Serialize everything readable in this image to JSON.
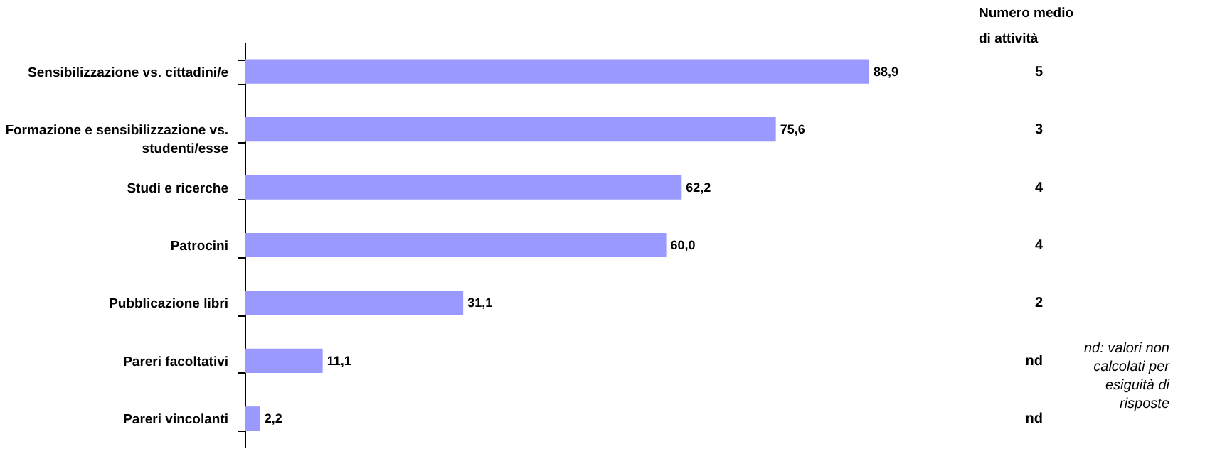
{
  "chart_data": {
    "type": "bar",
    "orientation": "horizontal",
    "categories": [
      "Sensibilizzazione vs. cittadini/e",
      "Formazione e sensibilizzazione vs. studenti/esse",
      "Studi e ricerche",
      "Patrocini",
      "Pubblicazione libri",
      "Pareri facoltativi",
      "Pareri vincolanti"
    ],
    "values": [
      88.9,
      75.6,
      62.2,
      60.0,
      31.1,
      11.1,
      2.2
    ],
    "value_labels": [
      "88,9",
      "75,6",
      "62,2",
      "60,0",
      "31,1",
      "11,1",
      "2,2"
    ],
    "color": "#9999ff",
    "annotations": [
      "Numero medio\ndi attività",
      "5",
      "3",
      "4",
      "4",
      "2",
      "nd",
      "nd",
      "nd: valori non\ncalcolati per\nesiguità di\nrisposte"
    ]
  }
}
